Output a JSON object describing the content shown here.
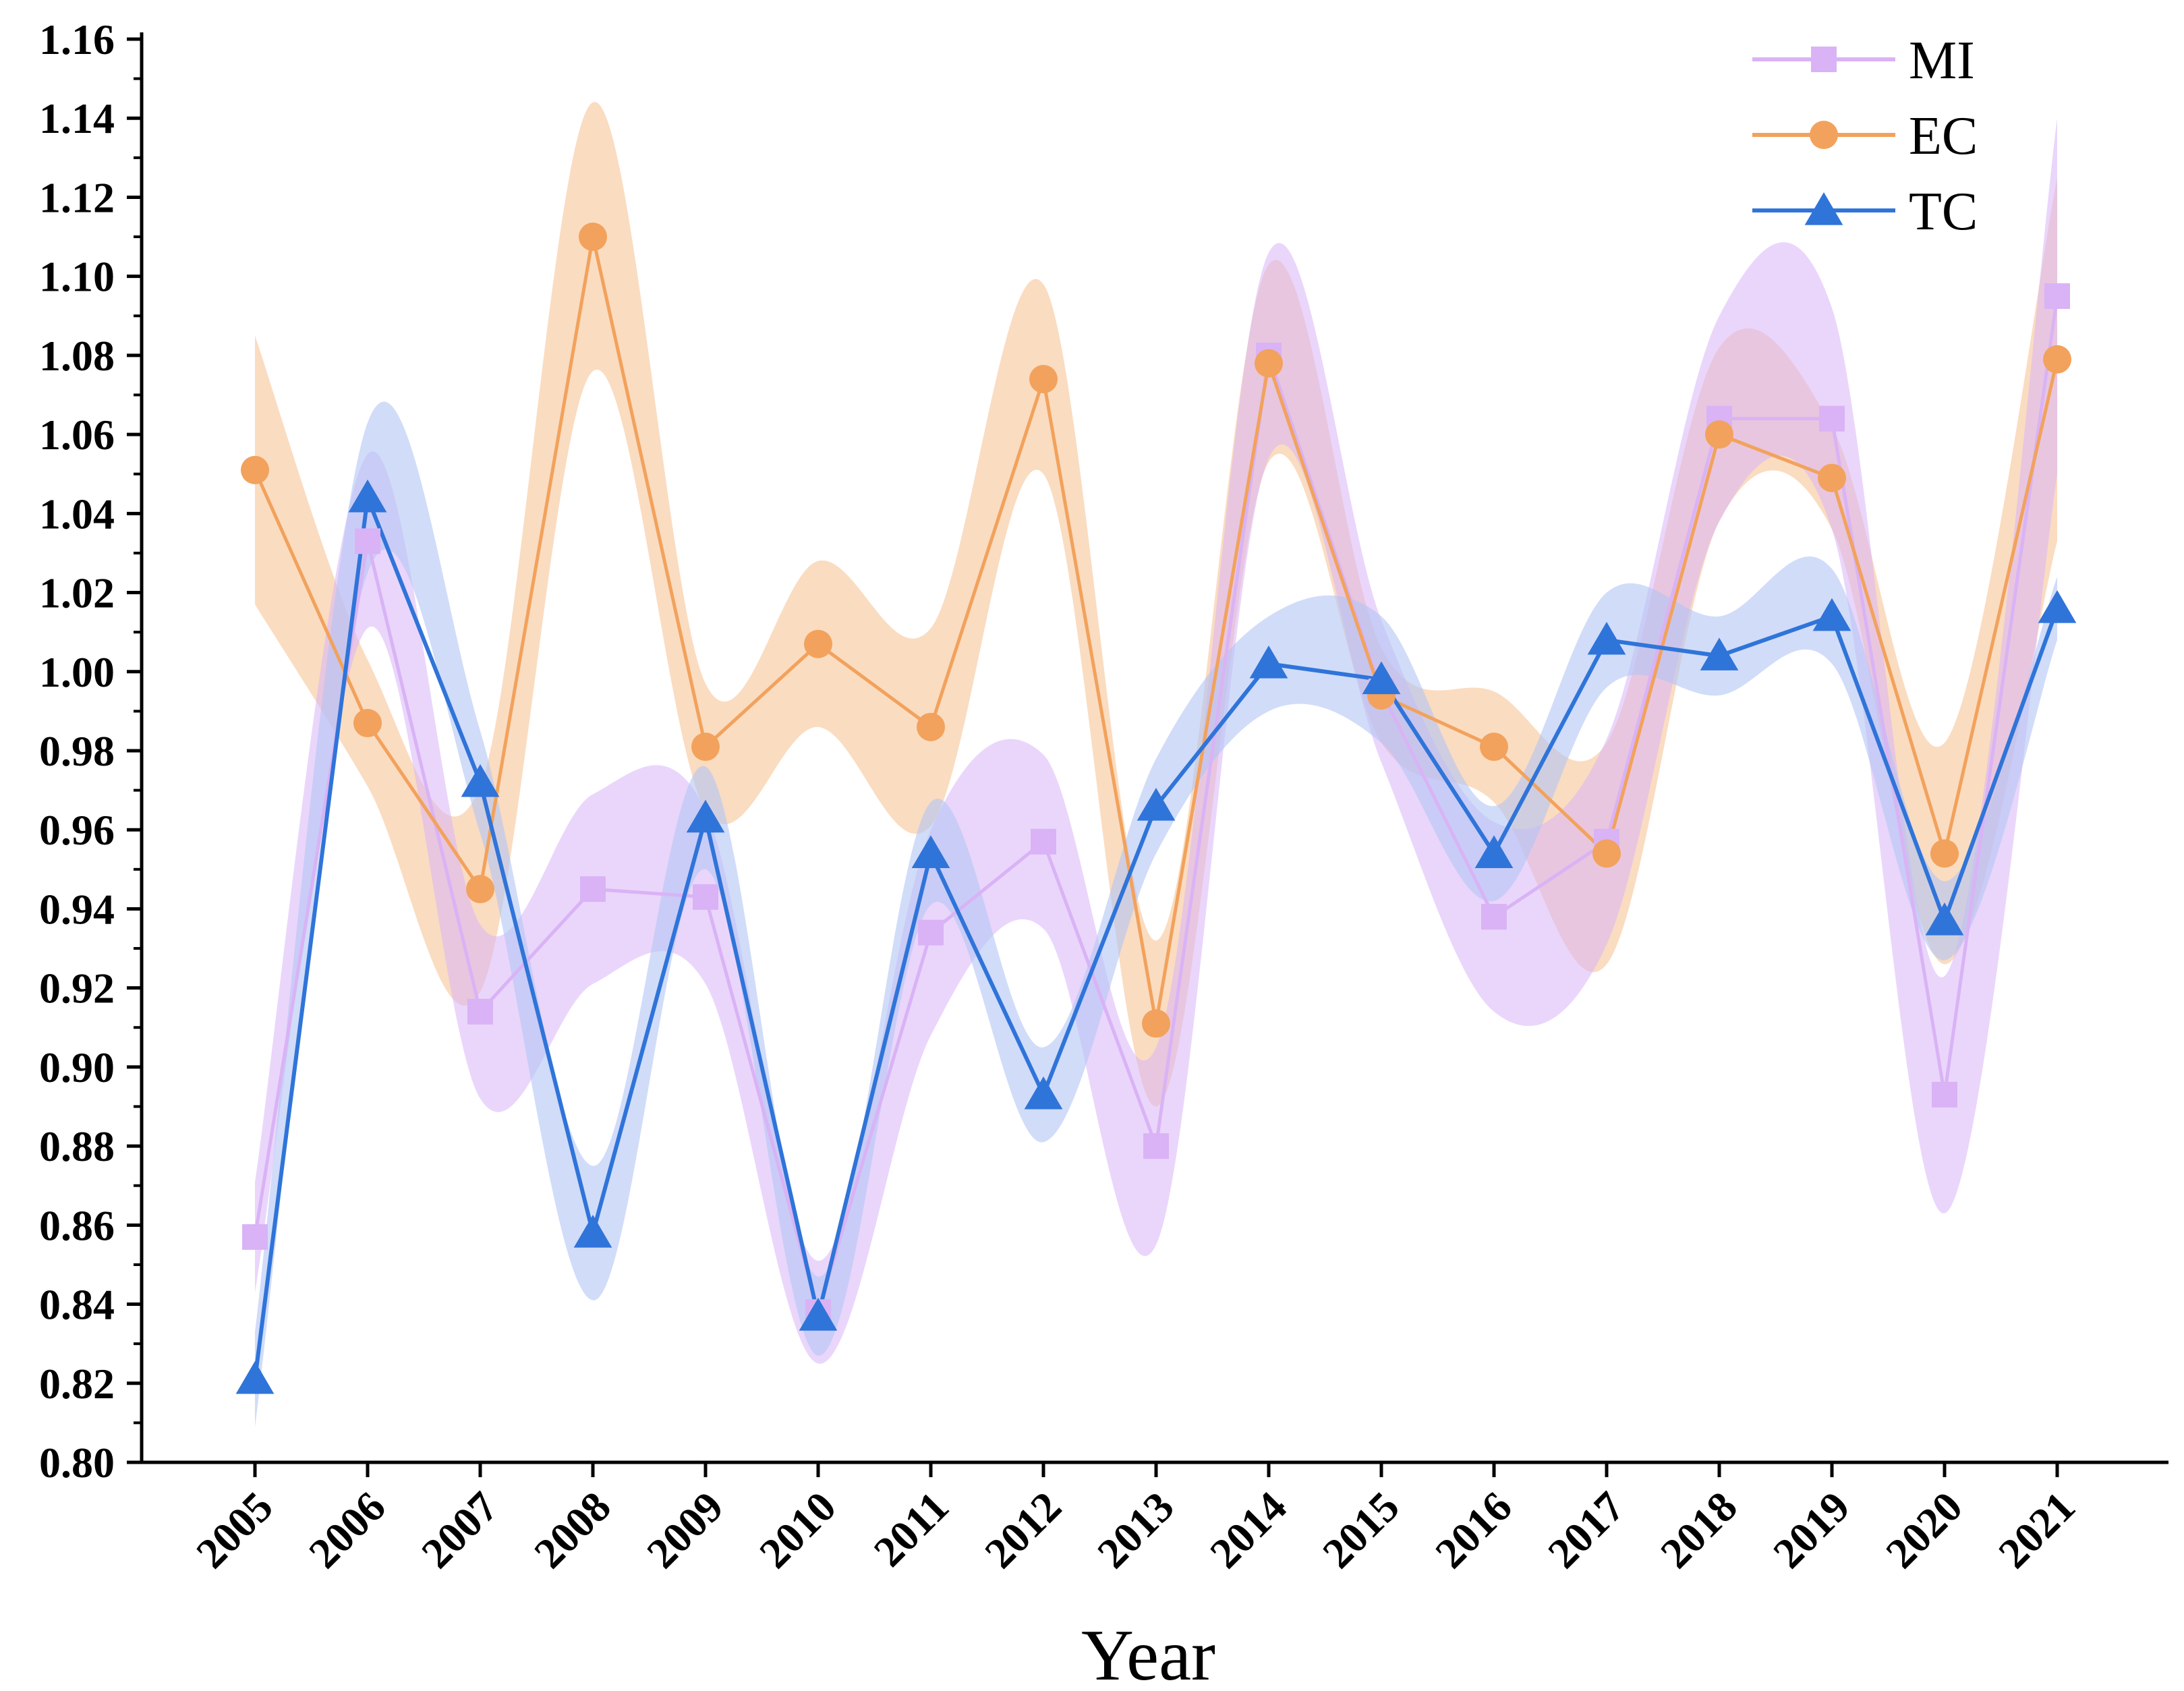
{
  "chart_data": {
    "type": "line",
    "title": "",
    "xlabel": "Year",
    "ylabel": "",
    "ylim": [
      0.8,
      1.16
    ],
    "y_ticks": [
      "0.80",
      "0.82",
      "0.84",
      "0.86",
      "0.88",
      "0.90",
      "0.92",
      "0.94",
      "0.96",
      "0.98",
      "1.00",
      "1.02",
      "1.04",
      "1.06",
      "1.08",
      "1.10",
      "1.12",
      "1.14",
      "1.16"
    ],
    "categories": [
      "2005",
      "2006",
      "2007",
      "2008",
      "2009",
      "2010",
      "2011",
      "2012",
      "2013",
      "2014",
      "2015",
      "2016",
      "2017",
      "2018",
      "2019",
      "2020",
      "2021"
    ],
    "legend_position": "top-right",
    "series": [
      {
        "name": "MI",
        "color": "#d9b3f5",
        "band_color": "#d8b4f8",
        "marker": "square",
        "values": [
          0.857,
          1.033,
          0.914,
          0.945,
          0.943,
          0.838,
          0.934,
          0.957,
          0.88,
          1.08,
          0.995,
          0.938,
          0.957,
          1.064,
          1.064,
          0.893,
          1.095
        ],
        "band": [
          0.014,
          0.022,
          0.022,
          0.024,
          0.022,
          0.013,
          0.026,
          0.022,
          0.025,
          0.026,
          0.018,
          0.024,
          0.026,
          0.026,
          0.028,
          0.03,
          0.045
        ]
      },
      {
        "name": "EC",
        "color": "#f2a25c",
        "band_color": "#f6c08e",
        "marker": "circle",
        "values": [
          1.051,
          0.987,
          0.945,
          1.11,
          0.981,
          1.007,
          0.986,
          1.074,
          0.911,
          1.078,
          0.994,
          0.981,
          0.954,
          1.06,
          1.049,
          0.954,
          1.079
        ],
        "band": [
          0.034,
          0.016,
          0.026,
          0.034,
          0.016,
          0.021,
          0.025,
          0.024,
          0.021,
          0.025,
          0.012,
          0.014,
          0.028,
          0.022,
          0.013,
          0.028,
          0.046
        ]
      },
      {
        "name": "TC",
        "color": "#2f74d9",
        "band_color": "#b3c4f5",
        "marker": "triangle",
        "values": [
          0.821,
          1.044,
          0.972,
          0.858,
          0.963,
          0.837,
          0.954,
          0.893,
          0.966,
          1.002,
          0.998,
          0.954,
          1.008,
          1.004,
          1.014,
          0.937,
          1.016
        ],
        "band": [
          0.012,
          0.019,
          0.013,
          0.017,
          0.013,
          0.01,
          0.013,
          0.012,
          0.012,
          0.012,
          0.016,
          0.012,
          0.012,
          0.01,
          0.012,
          0.01,
          0.008
        ]
      }
    ]
  }
}
